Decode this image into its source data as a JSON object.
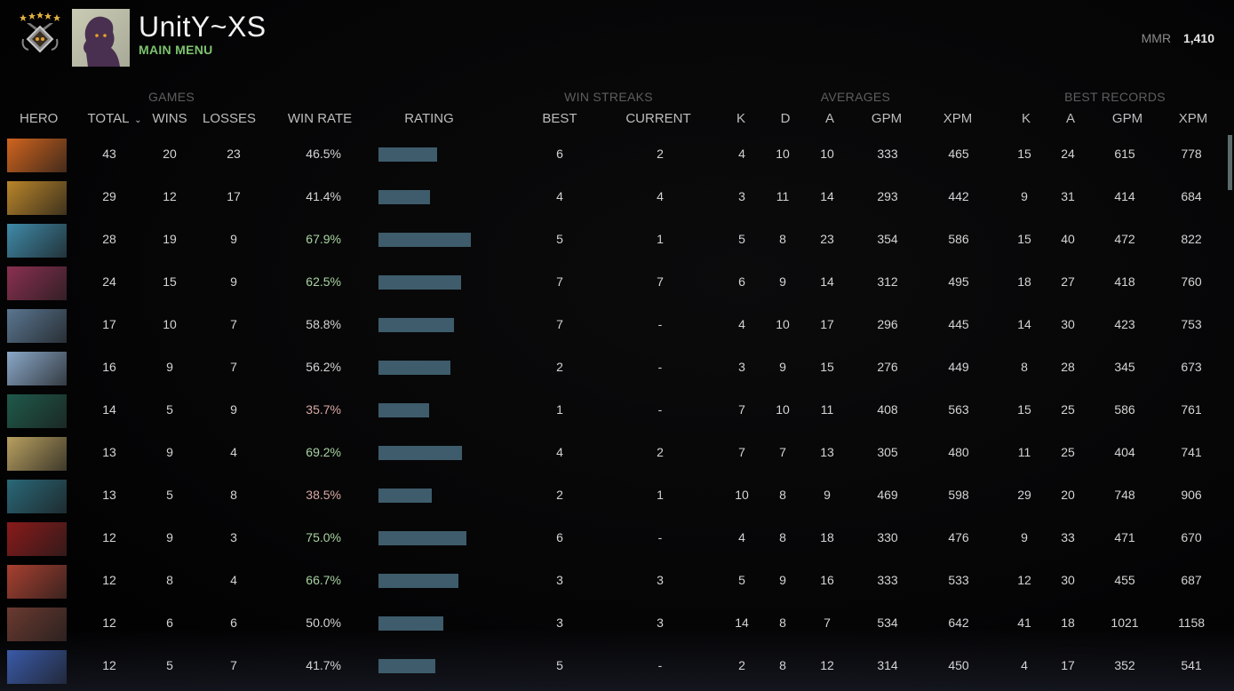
{
  "header": {
    "username": "UnitY~XS",
    "subtitle": "MAIN MENU",
    "mmr_label": "MMR",
    "mmr_value": "1,410",
    "rank_icon": "rank-medal-5-stars",
    "avatar_icon": "shadowy-figure-avatar"
  },
  "groups": {
    "games": "GAMES",
    "win_streaks": "WIN STREAKS",
    "averages": "AVERAGES",
    "best_records": "BEST RECORDS"
  },
  "columns": {
    "hero": "HERO",
    "total": "TOTAL",
    "wins": "WINS",
    "losses": "LOSSES",
    "win_rate": "WIN RATE",
    "rating": "RATING",
    "best": "BEST",
    "current": "CURRENT",
    "avg_k": "K",
    "avg_d": "D",
    "avg_a": "A",
    "avg_gpm": "GPM",
    "avg_xpm": "XPM",
    "rec_k": "K",
    "rec_a": "A",
    "rec_gpm": "GPM",
    "rec_xpm": "XPM",
    "sort_icon": "chevron-down"
  },
  "colors": {
    "win_rate_good": "#a8d4a0",
    "win_rate_bad": "#d9a9a4",
    "rating_bar": "#3e5c6b",
    "accent_green": "#7dc36f"
  },
  "rows": [
    {
      "portrait": "#d0641e",
      "total": "43",
      "wins": "20",
      "losses": "23",
      "win_rate": "46.5%",
      "tone": "neutral",
      "rating": 66,
      "best": "6",
      "current": "2",
      "k": "4",
      "d": "10",
      "a": "10",
      "gpm": "333",
      "xpm": "465",
      "rk": "15",
      "ra": "24",
      "rgpm": "615",
      "rxpm": "778"
    },
    {
      "portrait": "#b9852a",
      "total": "29",
      "wins": "12",
      "losses": "17",
      "win_rate": "41.4%",
      "tone": "neutral",
      "rating": 58,
      "best": "4",
      "current": "4",
      "k": "3",
      "d": "11",
      "a": "14",
      "gpm": "293",
      "xpm": "442",
      "rk": "9",
      "ra": "31",
      "rgpm": "414",
      "rxpm": "684"
    },
    {
      "portrait": "#3f8aa8",
      "total": "28",
      "wins": "19",
      "losses": "9",
      "win_rate": "67.9%",
      "tone": "green",
      "rating": 104,
      "best": "5",
      "current": "1",
      "k": "5",
      "d": "8",
      "a": "23",
      "gpm": "354",
      "xpm": "586",
      "rk": "15",
      "ra": "40",
      "rgpm": "472",
      "rxpm": "822"
    },
    {
      "portrait": "#8a3050",
      "total": "24",
      "wins": "15",
      "losses": "9",
      "win_rate": "62.5%",
      "tone": "green",
      "rating": 93,
      "best": "7",
      "current": "7",
      "k": "6",
      "d": "9",
      "a": "14",
      "gpm": "312",
      "xpm": "495",
      "rk": "18",
      "ra": "27",
      "rgpm": "418",
      "rxpm": "760"
    },
    {
      "portrait": "#5a7690",
      "total": "17",
      "wins": "10",
      "losses": "7",
      "win_rate": "58.8%",
      "tone": "neutral",
      "rating": 85,
      "best": "7",
      "current": "-",
      "k": "4",
      "d": "10",
      "a": "17",
      "gpm": "296",
      "xpm": "445",
      "rk": "14",
      "ra": "30",
      "rgpm": "423",
      "rxpm": "753"
    },
    {
      "portrait": "#8aa8c8",
      "total": "16",
      "wins": "9",
      "losses": "7",
      "win_rate": "56.2%",
      "tone": "neutral",
      "rating": 81,
      "best": "2",
      "current": "-",
      "k": "3",
      "d": "9",
      "a": "15",
      "gpm": "276",
      "xpm": "449",
      "rk": "8",
      "ra": "28",
      "rgpm": "345",
      "rxpm": "673"
    },
    {
      "portrait": "#1f5a4a",
      "total": "14",
      "wins": "5",
      "losses": "9",
      "win_rate": "35.7%",
      "tone": "red",
      "rating": 57,
      "best": "1",
      "current": "-",
      "k": "7",
      "d": "10",
      "a": "11",
      "gpm": "408",
      "xpm": "563",
      "rk": "15",
      "ra": "25",
      "rgpm": "586",
      "rxpm": "761"
    },
    {
      "portrait": "#b8a060",
      "total": "13",
      "wins": "9",
      "losses": "4",
      "win_rate": "69.2%",
      "tone": "green",
      "rating": 94,
      "best": "4",
      "current": "2",
      "k": "7",
      "d": "7",
      "a": "13",
      "gpm": "305",
      "xpm": "480",
      "rk": "11",
      "ra": "25",
      "rgpm": "404",
      "rxpm": "741"
    },
    {
      "portrait": "#2a6878",
      "total": "13",
      "wins": "5",
      "losses": "8",
      "win_rate": "38.5%",
      "tone": "red",
      "rating": 60,
      "best": "2",
      "current": "1",
      "k": "10",
      "d": "8",
      "a": "9",
      "gpm": "469",
      "xpm": "598",
      "rk": "29",
      "ra": "20",
      "rgpm": "748",
      "rxpm": "906"
    },
    {
      "portrait": "#8a1a1a",
      "total": "12",
      "wins": "9",
      "losses": "3",
      "win_rate": "75.0%",
      "tone": "green",
      "rating": 99,
      "best": "6",
      "current": "-",
      "k": "4",
      "d": "8",
      "a": "18",
      "gpm": "330",
      "xpm": "476",
      "rk": "9",
      "ra": "33",
      "rgpm": "471",
      "rxpm": "670"
    },
    {
      "portrait": "#a84030",
      "total": "12",
      "wins": "8",
      "losses": "4",
      "win_rate": "66.7%",
      "tone": "green",
      "rating": 90,
      "best": "3",
      "current": "3",
      "k": "5",
      "d": "9",
      "a": "16",
      "gpm": "333",
      "xpm": "533",
      "rk": "12",
      "ra": "30",
      "rgpm": "455",
      "rxpm": "687"
    },
    {
      "portrait": "#6a3a30",
      "total": "12",
      "wins": "6",
      "losses": "6",
      "win_rate": "50.0%",
      "tone": "neutral",
      "rating": 73,
      "best": "3",
      "current": "3",
      "k": "14",
      "d": "8",
      "a": "7",
      "gpm": "534",
      "xpm": "642",
      "rk": "41",
      "ra": "18",
      "rgpm": "1021",
      "rxpm": "1158"
    },
    {
      "portrait": "#3a5aa8",
      "total": "12",
      "wins": "5",
      "losses": "7",
      "win_rate": "41.7%",
      "tone": "neutral",
      "rating": 64,
      "best": "5",
      "current": "-",
      "k": "2",
      "d": "8",
      "a": "12",
      "gpm": "314",
      "xpm": "450",
      "rk": "4",
      "ra": "17",
      "rgpm": "352",
      "rxpm": "541"
    }
  ]
}
